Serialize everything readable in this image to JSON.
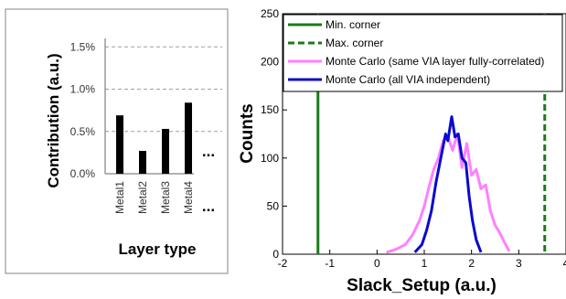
{
  "chart_data": [
    {
      "type": "bar",
      "ylabel": "Contribution (a.u.)",
      "xlabel": "Layer type",
      "categories": [
        "Metal1",
        "Metal2",
        "Metal3",
        "Metal4"
      ],
      "values": [
        0.69,
        0.27,
        0.53,
        0.84
      ],
      "yticks": [
        0.0,
        0.5,
        1.0,
        1.5
      ],
      "ytick_labels": [
        "0.0%",
        "0.5%",
        "1.0%",
        "1.5%"
      ],
      "ylim": [
        0,
        1.6
      ],
      "ellipsis_label": "...",
      "grid": "dashed horizontal",
      "bar_color": "#000000"
    },
    {
      "type": "line",
      "xlabel": "Slack_Setup (a.u.)",
      "ylabel": "Counts",
      "xlim": [
        -2,
        4
      ],
      "ylim": [
        0,
        250
      ],
      "xticks": [
        -2,
        -1,
        0,
        1,
        2,
        3,
        4
      ],
      "yticks": [
        0,
        50,
        100,
        150,
        200,
        250
      ],
      "legend_position": "top",
      "vlines": [
        {
          "name": "Min. corner",
          "x": -1.25,
          "color": "#1b7a1b",
          "dash": "solid"
        },
        {
          "name": "Max. corner",
          "x": 3.55,
          "color": "#1b7a1b",
          "dash": "dashed"
        }
      ],
      "series": [
        {
          "name": "Monte Carlo (same VIA layer fully-correlated)",
          "color": "#ff80ff",
          "x": [
            0.2,
            0.4,
            0.6,
            0.75,
            0.9,
            1.0,
            1.1,
            1.2,
            1.3,
            1.4,
            1.5,
            1.6,
            1.7,
            1.8,
            1.9,
            2.0,
            2.1,
            2.2,
            2.3,
            2.4,
            2.5,
            2.6,
            2.7,
            2.8
          ],
          "y": [
            2,
            5,
            10,
            20,
            35,
            50,
            70,
            88,
            100,
            118,
            122,
            108,
            125,
            90,
            115,
            82,
            88,
            68,
            72,
            45,
            30,
            22,
            12,
            3
          ]
        },
        {
          "name": "Monte Carlo (all VIA independent)",
          "color": "#0a0acd",
          "x": [
            0.8,
            0.95,
            1.05,
            1.15,
            1.25,
            1.35,
            1.45,
            1.5,
            1.58,
            1.65,
            1.72,
            1.8,
            1.88,
            1.95,
            2.02,
            2.1,
            2.2
          ],
          "y": [
            2,
            10,
            25,
            45,
            75,
            100,
            125,
            118,
            143,
            122,
            125,
            100,
            95,
            60,
            35,
            15,
            2
          ]
        }
      ]
    }
  ]
}
